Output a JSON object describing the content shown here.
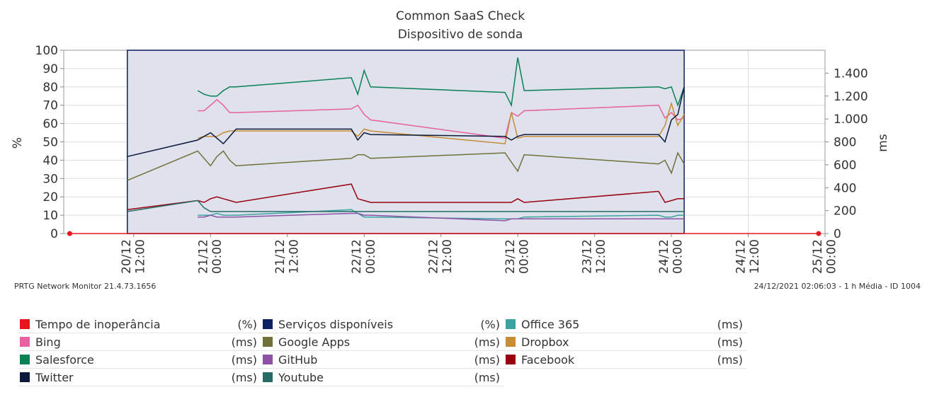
{
  "chart_data": {
    "type": "line",
    "title": "Common SaaS Check",
    "subtitle": "Dispositivo de sonda",
    "ylabel": "%",
    "y2label": "ms",
    "footer_left": "PRTG Network Monitor 21.4.73.1656",
    "footer_right": "24/12/2021 02:06:03 - 1 h Média - ID 1004",
    "x": [
      "20/12 02:00",
      "20/12 11:00",
      "20/12 22:00",
      "20/12 23:00",
      "21/12 00:00",
      "21/12 01:00",
      "21/12 02:00",
      "21/12 03:00",
      "21/12 04:00",
      "21/12 22:00",
      "21/12 23:00",
      "22/12 00:00",
      "22/12 01:00",
      "22/12 22:00",
      "22/12 23:00",
      "23/12 00:00",
      "23/12 01:00",
      "23/12 22:00",
      "23/12 23:00",
      "24/12 00:00",
      "24/12 01:00",
      "24/12 02:00",
      "24/12 23:00"
    ],
    "xlim": [
      "20/12 01:04",
      "25/12 00:00"
    ],
    "xticks": [
      "20/12 12:00",
      "21/12 00:00",
      "21/12 12:00",
      "22/12 00:00",
      "22/12 12:00",
      "23/12 00:00",
      "23/12 12:00",
      "24/12 00:00",
      "24/12 12:00",
      "25/12 00:00"
    ],
    "ylim": [
      0,
      100
    ],
    "yticks": [
      0,
      10,
      20,
      30,
      40,
      50,
      60,
      70,
      80,
      90,
      100
    ],
    "y2lim": [
      0,
      1600
    ],
    "y2ticks": [
      0,
      200,
      400,
      600,
      800,
      {
        "value": 1000,
        "label": "1.000"
      },
      {
        "value": 1200,
        "label": "1.200"
      },
      {
        "value": 1400,
        "label": "1.400"
      }
    ],
    "grid": true,
    "series": [
      {
        "name": "Tempo de inoperância",
        "unit": "(%)",
        "color": "#e8141e",
        "values": [
          0,
          0,
          0,
          0,
          0,
          0,
          0,
          0,
          0,
          0,
          0,
          0,
          0,
          0,
          0,
          0,
          0,
          0,
          0,
          0,
          0,
          0,
          0
        ]
      },
      {
        "name": "Serviços disponíveis",
        "unit": "(%)",
        "color": "#0d2060",
        "type": "area",
        "values": [
          null,
          100,
          100,
          100,
          100,
          100,
          100,
          100,
          100,
          100,
          100,
          100,
          100,
          100,
          100,
          100,
          100,
          100,
          100,
          100,
          100,
          100,
          null
        ]
      },
      {
        "name": "Office 365",
        "unit": "(ms)",
        "color": "#3aa3a0",
        "axis": "y2",
        "values": [
          null,
          null,
          160,
          160,
          160,
          176,
          160,
          160,
          160,
          208,
          176,
          144,
          144,
          128,
          128,
          128,
          144,
          160,
          144,
          144,
          160,
          160,
          null
        ]
      },
      {
        "name": "Bing",
        "unit": "(ms)",
        "color": "#e8609f",
        "axis": "y2",
        "values": [
          null,
          null,
          1072,
          1072,
          1120,
          1168,
          1120,
          1056,
          1056,
          1088,
          1120,
          1040,
          992,
          832,
          1056,
          1024,
          1072,
          1120,
          1008,
          1056,
          992,
          1008,
          null
        ]
      },
      {
        "name": "Google Apps",
        "unit": "(ms)",
        "color": "#707038",
        "axis": "y2",
        "values": [
          null,
          464,
          720,
          656,
          592,
          672,
          720,
          640,
          592,
          656,
          688,
          688,
          656,
          704,
          624,
          544,
          688,
          608,
          640,
          528,
          704,
          608,
          null
        ]
      },
      {
        "name": "Dropbox",
        "unit": "(ms)",
        "color": "#c78c34",
        "axis": "y2",
        "values": [
          null,
          null,
          832,
          848,
          848,
          848,
          880,
          896,
          896,
          896,
          848,
          912,
          896,
          784,
          1056,
          832,
          848,
          848,
          944,
          1136,
          944,
          1040,
          null
        ]
      },
      {
        "name": "Salesforce",
        "unit": "(ms)",
        "color": "#0a8055",
        "axis": "y2",
        "values": [
          null,
          null,
          1248,
          1216,
          1200,
          1200,
          1248,
          1280,
          1280,
          1360,
          1216,
          1424,
          1280,
          1232,
          1120,
          1536,
          1248,
          1280,
          1264,
          1280,
          1120,
          1280,
          null
        ]
      },
      {
        "name": "GitHub",
        "unit": "(ms)",
        "color": "#8c52a6",
        "axis": "y2",
        "values": [
          null,
          null,
          144,
          144,
          160,
          144,
          144,
          144,
          144,
          176,
          176,
          160,
          160,
          112,
          128,
          128,
          128,
          128,
          128,
          128,
          128,
          128,
          null
        ]
      },
      {
        "name": "Facebook",
        "unit": "(ms)",
        "color": "#990010",
        "axis": "y2",
        "values": [
          null,
          208,
          288,
          272,
          304,
          320,
          304,
          288,
          272,
          432,
          304,
          288,
          272,
          272,
          272,
          304,
          272,
          368,
          272,
          288,
          304,
          304,
          null
        ]
      },
      {
        "name": "Twitter",
        "unit": "(ms)",
        "color": "#0b1a3a",
        "axis": "y2",
        "values": [
          null,
          672,
          816,
          848,
          880,
          832,
          784,
          848,
          912,
          912,
          816,
          880,
          864,
          848,
          816,
          848,
          864,
          864,
          800,
          992,
          1040,
          1280,
          null
        ]
      },
      {
        "name": "Youtube",
        "unit": "(ms)",
        "color": "#266b65",
        "axis": "y2",
        "values": [
          null,
          192,
          288,
          224,
          192,
          192,
          192,
          192,
          192,
          192,
          192,
          192,
          192,
          192,
          192,
          192,
          192,
          192,
          192,
          192,
          192,
          192,
          null
        ]
      }
    ]
  }
}
